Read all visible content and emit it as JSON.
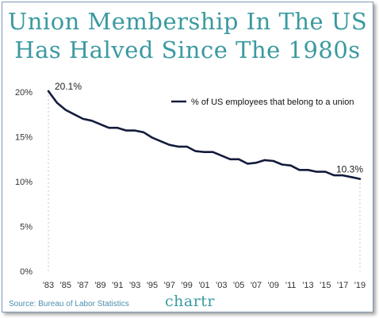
{
  "title_line1": "Union Membership In The US",
  "title_line2": "Has Halved Since The 1980s",
  "source": "Source: Bureau of Labor Statistics",
  "brand": "chartr",
  "colors": {
    "title": "#3a9aa0",
    "line": "#141b3c",
    "source": "#4a8fb0",
    "border": "#7d9ab8"
  },
  "chart_data": {
    "type": "line",
    "x_tick_labels": [
      "'83",
      "'85",
      "'87",
      "'89",
      "'91",
      "'93",
      "'95",
      "'97",
      "'99",
      "'01",
      "'03",
      "'05",
      "'07",
      "'09",
      "'11",
      "'13",
      "'15",
      "'17",
      "'19"
    ],
    "y_tick_labels": [
      "20%",
      "15%",
      "10%",
      "5%",
      "0%"
    ],
    "ylim": [
      0,
      20
    ],
    "xlim": [
      1983,
      2019
    ],
    "grid": false,
    "legend_position": "top-right",
    "series": [
      {
        "name": "% of US employees that belong to a union",
        "x": [
          1983,
          1984,
          1985,
          1986,
          1987,
          1988,
          1989,
          1990,
          1991,
          1992,
          1993,
          1994,
          1995,
          1996,
          1997,
          1998,
          1999,
          2000,
          2001,
          2002,
          2003,
          2004,
          2005,
          2006,
          2007,
          2008,
          2009,
          2010,
          2011,
          2012,
          2013,
          2014,
          2015,
          2016,
          2017,
          2018,
          2019
        ],
        "values": [
          20.1,
          18.8,
          18.0,
          17.5,
          17.0,
          16.8,
          16.4,
          16.0,
          16.0,
          15.7,
          15.7,
          15.5,
          14.9,
          14.5,
          14.1,
          13.9,
          13.9,
          13.4,
          13.3,
          13.3,
          12.9,
          12.5,
          12.5,
          12.0,
          12.1,
          12.4,
          12.3,
          11.9,
          11.8,
          11.3,
          11.3,
          11.1,
          11.1,
          10.7,
          10.7,
          10.5,
          10.3
        ]
      }
    ],
    "annotations": [
      {
        "x": 1983,
        "y": 20.1,
        "text": "20.1%"
      },
      {
        "x": 2019,
        "y": 10.3,
        "text": "10.3%"
      }
    ]
  }
}
